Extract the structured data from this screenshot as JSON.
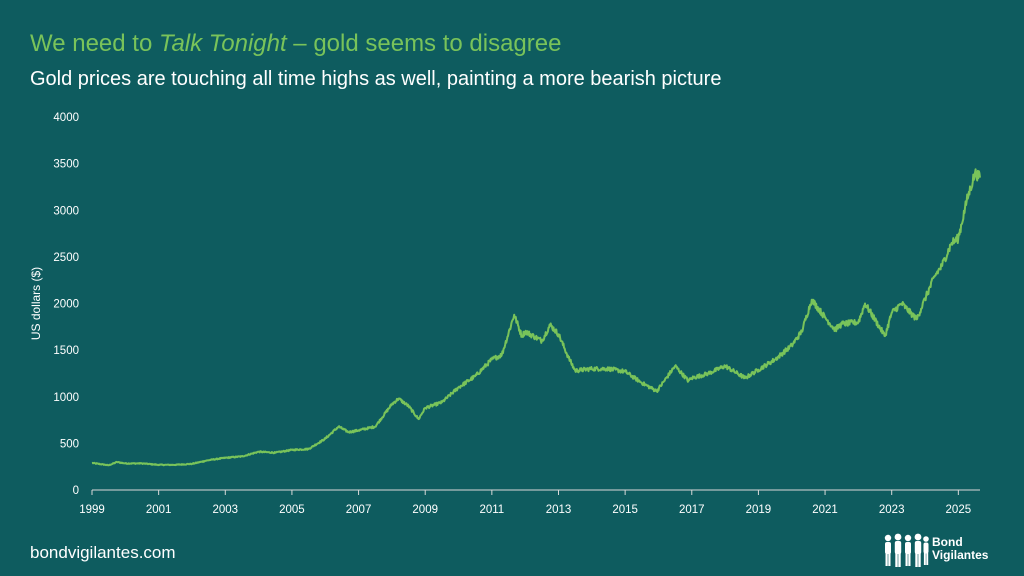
{
  "header": {
    "title_prefix": "We need to ",
    "title_emphasis": "Talk Tonight",
    "title_suffix": " – gold seems to disagree",
    "subtitle": "Gold prices are touching all time highs as well, painting a more bearish picture"
  },
  "footer": {
    "url": "bondvigilantes.com",
    "brand_line1": "Bond",
    "brand_line2": "Vigilantes"
  },
  "colors": {
    "background": "#0e5c5f",
    "title": "#79c35a",
    "series": "#79c35a",
    "text": "#ffffff"
  },
  "chart_data": {
    "type": "line",
    "title": "",
    "xlabel": "",
    "ylabel": "US dollars ($)",
    "xlim": [
      1999.0,
      2025.65
    ],
    "ylim": [
      0,
      4000
    ],
    "x_ticks": [
      1999,
      2001,
      2003,
      2005,
      2007,
      2009,
      2011,
      2013,
      2015,
      2017,
      2019,
      2021,
      2023,
      2025
    ],
    "y_ticks": [
      0,
      500,
      1000,
      1500,
      2000,
      2500,
      3000,
      3500,
      4000
    ],
    "grid": false,
    "legend": "none",
    "series": [
      {
        "name": "",
        "x": [
          1999.0,
          1999.5,
          1999.75,
          2000.0,
          2000.5,
          2001.0,
          2001.5,
          2002.0,
          2002.5,
          2003.0,
          2003.5,
          2004.0,
          2004.5,
          2005.0,
          2005.5,
          2006.0,
          2006.4,
          2006.7,
          2007.0,
          2007.5,
          2008.0,
          2008.2,
          2008.5,
          2008.8,
          2009.0,
          2009.5,
          2010.0,
          2010.5,
          2011.0,
          2011.3,
          2011.67,
          2011.9,
          2012.0,
          2012.3,
          2012.5,
          2012.75,
          2013.0,
          2013.3,
          2013.5,
          2014.0,
          2014.5,
          2015.0,
          2015.5,
          2015.95,
          2016.5,
          2016.9,
          2017.0,
          2017.5,
          2018.0,
          2018.6,
          2019.0,
          2019.5,
          2020.0,
          2020.3,
          2020.6,
          2021.0,
          2021.3,
          2021.5,
          2022.0,
          2022.2,
          2022.8,
          2023.0,
          2023.3,
          2023.75,
          2024.0,
          2024.3,
          2024.5,
          2024.8,
          2025.0,
          2025.25,
          2025.5,
          2025.65
        ],
        "y": [
          290,
          265,
          300,
          285,
          285,
          270,
          270,
          280,
          320,
          345,
          360,
          410,
          400,
          430,
          440,
          550,
          680,
          620,
          640,
          680,
          920,
          980,
          900,
          760,
          880,
          940,
          1100,
          1220,
          1400,
          1450,
          1880,
          1650,
          1700,
          1640,
          1600,
          1770,
          1670,
          1420,
          1280,
          1300,
          1300,
          1270,
          1150,
          1060,
          1330,
          1170,
          1200,
          1250,
          1330,
          1200,
          1290,
          1400,
          1550,
          1700,
          2040,
          1850,
          1720,
          1780,
          1800,
          2000,
          1650,
          1900,
          2000,
          1830,
          2050,
          2300,
          2400,
          2650,
          2700,
          3100,
          3400,
          3350
        ]
      }
    ]
  }
}
